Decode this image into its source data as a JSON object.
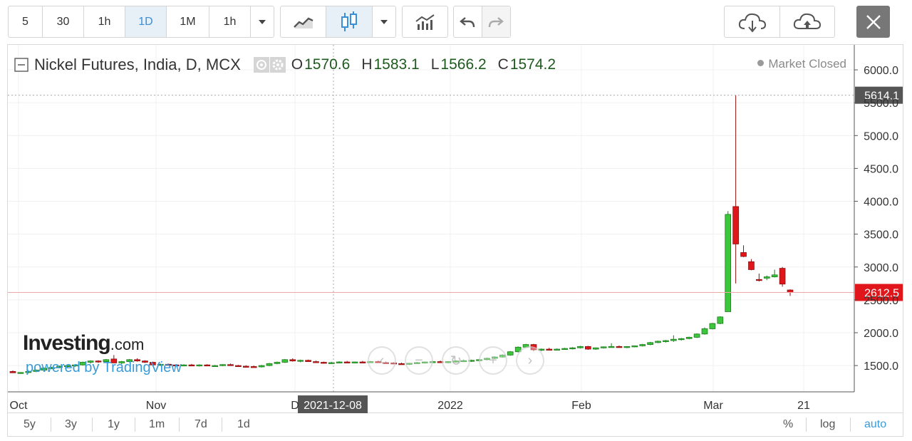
{
  "toolbar": {
    "intervals": [
      "5",
      "30",
      "1h",
      "1D",
      "1M",
      "1h"
    ],
    "active_interval": "1D"
  },
  "legend": {
    "title": "Nickel Futures, India, D, MCX",
    "o_label": "O",
    "o": "1570.6",
    "h_label": "H",
    "h": "1583.1",
    "l_label": "L",
    "l": "1566.2",
    "c_label": "C",
    "c": "1574.2",
    "status": "Market Closed"
  },
  "crosshair_date": "2021-12-08",
  "bottom": {
    "ranges": [
      "5y",
      "3y",
      "1y",
      "1m",
      "7d",
      "1d"
    ],
    "percent": "%",
    "log": "log",
    "auto": "auto"
  },
  "branding": {
    "investing": "Investing",
    "com": ".com",
    "powered": "powered by TradingView"
  },
  "colors": {
    "up": "#3cc63c",
    "down": "#e0161b",
    "last_price_line": "#f0a8a8",
    "accent": "#3a9bd9"
  },
  "chart_data": {
    "type": "candlestick",
    "x_ticks": [
      "Oct",
      "Nov",
      "D",
      "2022",
      "Feb",
      "Mar",
      "21"
    ],
    "y_ticks": [
      "6000.0",
      "5500.0",
      "5000.0",
      "4500.0",
      "4000.0",
      "3500.0",
      "3000.0",
      "2500.0",
      "2000.0",
      "1500.0"
    ],
    "ylim": [
      1100,
      6380
    ],
    "crosshair_price": "5614.1",
    "last_price": "2612.5",
    "candles": [
      [
        1410,
        1425,
        1395,
        1390
      ],
      [
        1385,
        1400,
        1375,
        1395
      ],
      [
        1395,
        1420,
        1380,
        1410
      ],
      [
        1410,
        1440,
        1400,
        1430
      ],
      [
        1430,
        1470,
        1420,
        1460
      ],
      [
        1460,
        1480,
        1445,
        1470
      ],
      [
        1470,
        1500,
        1460,
        1490
      ],
      [
        1490,
        1510,
        1470,
        1500
      ],
      [
        1500,
        1520,
        1480,
        1510
      ],
      [
        1510,
        1560,
        1500,
        1550
      ],
      [
        1550,
        1580,
        1530,
        1570
      ],
      [
        1570,
        1580,
        1540,
        1560
      ],
      [
        1560,
        1600,
        1550,
        1590
      ],
      [
        1600,
        1660,
        1580,
        1540
      ],
      [
        1540,
        1570,
        1520,
        1560
      ],
      [
        1560,
        1600,
        1550,
        1590
      ],
      [
        1590,
        1610,
        1560,
        1570
      ],
      [
        1570,
        1580,
        1540,
        1550
      ],
      [
        1550,
        1560,
        1500,
        1510
      ],
      [
        1510,
        1530,
        1495,
        1520
      ],
      [
        1520,
        1530,
        1500,
        1510
      ],
      [
        1510,
        1520,
        1490,
        1500
      ],
      [
        1500,
        1520,
        1490,
        1510
      ],
      [
        1510,
        1525,
        1495,
        1500
      ],
      [
        1500,
        1520,
        1485,
        1510
      ],
      [
        1510,
        1520,
        1490,
        1495
      ],
      [
        1495,
        1510,
        1480,
        1500
      ],
      [
        1500,
        1520,
        1490,
        1515
      ],
      [
        1515,
        1530,
        1495,
        1500
      ],
      [
        1500,
        1510,
        1480,
        1490
      ],
      [
        1490,
        1505,
        1475,
        1485
      ],
      [
        1485,
        1500,
        1470,
        1480
      ],
      [
        1480,
        1510,
        1470,
        1500
      ],
      [
        1500,
        1540,
        1490,
        1530
      ],
      [
        1530,
        1560,
        1520,
        1550
      ],
      [
        1550,
        1600,
        1540,
        1590
      ],
      [
        1590,
        1610,
        1560,
        1570
      ],
      [
        1570,
        1590,
        1550,
        1580
      ],
      [
        1580,
        1590,
        1555,
        1560
      ],
      [
        1560,
        1575,
        1540,
        1550
      ],
      [
        1550,
        1560,
        1530,
        1540
      ],
      [
        1540,
        1555,
        1525,
        1545
      ],
      [
        1545,
        1565,
        1535,
        1555
      ],
      [
        1555,
        1570,
        1540,
        1545
      ],
      [
        1545,
        1560,
        1535,
        1555
      ],
      [
        1555,
        1570,
        1540,
        1550
      ],
      [
        1550,
        1570,
        1540,
        1560
      ],
      [
        1560,
        1575,
        1540,
        1545
      ],
      [
        1545,
        1560,
        1530,
        1540
      ],
      [
        1540,
        1550,
        1520,
        1530
      ],
      [
        1530,
        1545,
        1515,
        1525
      ],
      [
        1525,
        1540,
        1510,
        1535
      ],
      [
        1535,
        1555,
        1525,
        1545
      ],
      [
        1545,
        1560,
        1530,
        1555
      ],
      [
        1555,
        1570,
        1540,
        1560
      ],
      [
        1560,
        1575,
        1545,
        1550
      ],
      [
        1550,
        1565,
        1535,
        1560
      ],
      [
        1560,
        1580,
        1545,
        1570
      ],
      [
        1570,
        1590,
        1555,
        1575
      ],
      [
        1575,
        1590,
        1555,
        1580
      ],
      [
        1580,
        1600,
        1565,
        1590
      ],
      [
        1590,
        1620,
        1580,
        1610
      ],
      [
        1610,
        1640,
        1600,
        1630
      ],
      [
        1630,
        1670,
        1620,
        1660
      ],
      [
        1660,
        1720,
        1650,
        1710
      ],
      [
        1710,
        1790,
        1700,
        1780
      ],
      [
        1780,
        1830,
        1770,
        1820
      ],
      [
        1820,
        1830,
        1720,
        1740
      ],
      [
        1740,
        1760,
        1720,
        1750
      ],
      [
        1750,
        1770,
        1730,
        1745
      ],
      [
        1745,
        1760,
        1730,
        1750
      ],
      [
        1750,
        1770,
        1740,
        1760
      ],
      [
        1760,
        1780,
        1745,
        1770
      ],
      [
        1770,
        1800,
        1760,
        1790
      ],
      [
        1790,
        1800,
        1740,
        1750
      ],
      [
        1750,
        1775,
        1740,
        1770
      ],
      [
        1770,
        1790,
        1760,
        1785
      ],
      [
        1785,
        1840,
        1775,
        1790
      ],
      [
        1790,
        1805,
        1775,
        1780
      ],
      [
        1780,
        1795,
        1765,
        1790
      ],
      [
        1790,
        1805,
        1780,
        1800
      ],
      [
        1800,
        1830,
        1790,
        1820
      ],
      [
        1820,
        1860,
        1810,
        1850
      ],
      [
        1850,
        1880,
        1840,
        1870
      ],
      [
        1870,
        1890,
        1850,
        1880
      ],
      [
        1880,
        1960,
        1860,
        1900
      ],
      [
        1900,
        1920,
        1880,
        1910
      ],
      [
        1910,
        1940,
        1900,
        1930
      ],
      [
        1930,
        1990,
        1920,
        1980
      ],
      [
        1980,
        2080,
        1970,
        2060
      ],
      [
        2060,
        2150,
        2050,
        2140
      ],
      [
        2140,
        2250,
        2130,
        2240
      ],
      [
        2320,
        3850,
        2320,
        3800
      ],
      [
        3920,
        5614,
        2750,
        3350
      ],
      [
        3220,
        3330,
        3150,
        3160
      ],
      [
        3080,
        3120,
        2950,
        2960
      ],
      [
        2810,
        2900,
        2780,
        2800
      ],
      [
        2830,
        2870,
        2800,
        2850
      ],
      [
        2850,
        2960,
        2840,
        2880
      ],
      [
        2980,
        3000,
        2700,
        2740
      ],
      [
        2650,
        2660,
        2560,
        2612
      ]
    ]
  }
}
